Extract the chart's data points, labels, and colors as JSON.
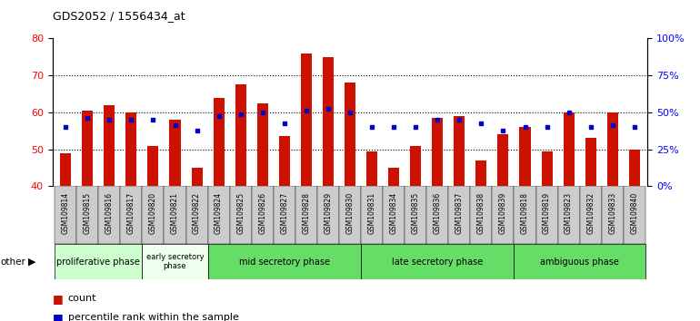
{
  "title": "GDS2052 / 1556434_at",
  "samples": [
    "GSM109814",
    "GSM109815",
    "GSM109816",
    "GSM109817",
    "GSM109820",
    "GSM109821",
    "GSM109822",
    "GSM109824",
    "GSM109825",
    "GSM109826",
    "GSM109827",
    "GSM109828",
    "GSM109829",
    "GSM109830",
    "GSM109831",
    "GSM109834",
    "GSM109835",
    "GSM109836",
    "GSM109837",
    "GSM109838",
    "GSM109839",
    "GSM109818",
    "GSM109819",
    "GSM109823",
    "GSM109832",
    "GSM109833",
    "GSM109840"
  ],
  "count_values": [
    49,
    60.5,
    62,
    60,
    51,
    58,
    45,
    64,
    67.5,
    62.5,
    53.5,
    76,
    75,
    68,
    49.5,
    45,
    51,
    58.5,
    59,
    47,
    54,
    56,
    49.5,
    60,
    53,
    60,
    50
  ],
  "percentile_values": [
    56,
    58.5,
    58,
    58,
    58,
    56.5,
    55,
    59,
    59.5,
    60,
    57,
    60.5,
    61,
    60,
    56,
    56,
    56,
    58,
    58,
    57,
    55,
    56,
    56,
    60,
    56,
    56.5,
    56
  ],
  "phase_boundaries": [
    {
      "name": "proliferative phase",
      "start": 0,
      "end": 4,
      "color": "#ccffcc"
    },
    {
      "name": "early secretory\nphase",
      "start": 4,
      "end": 7,
      "color": "#eeffee"
    },
    {
      "name": "mid secretory phase",
      "start": 7,
      "end": 14,
      "color": "#66dd66"
    },
    {
      "name": "late secretory phase",
      "start": 14,
      "end": 21,
      "color": "#66dd66"
    },
    {
      "name": "ambiguous phase",
      "start": 21,
      "end": 27,
      "color": "#66dd66"
    }
  ],
  "ylim_left": [
    40,
    80
  ],
  "ylim_right": [
    0,
    100
  ],
  "yticks_left": [
    40,
    50,
    60,
    70,
    80
  ],
  "yticks_right": [
    0,
    25,
    50,
    75,
    100
  ],
  "ytick_labels_right": [
    "0%",
    "25%",
    "50%",
    "75%",
    "100%"
  ],
  "grid_lines": [
    50,
    60,
    70
  ],
  "bar_color": "#cc1100",
  "percentile_color": "#0000cc",
  "bar_width": 0.5,
  "left_axis_color": "red",
  "right_axis_color": "blue",
  "tick_label_bg": "#dddddd"
}
